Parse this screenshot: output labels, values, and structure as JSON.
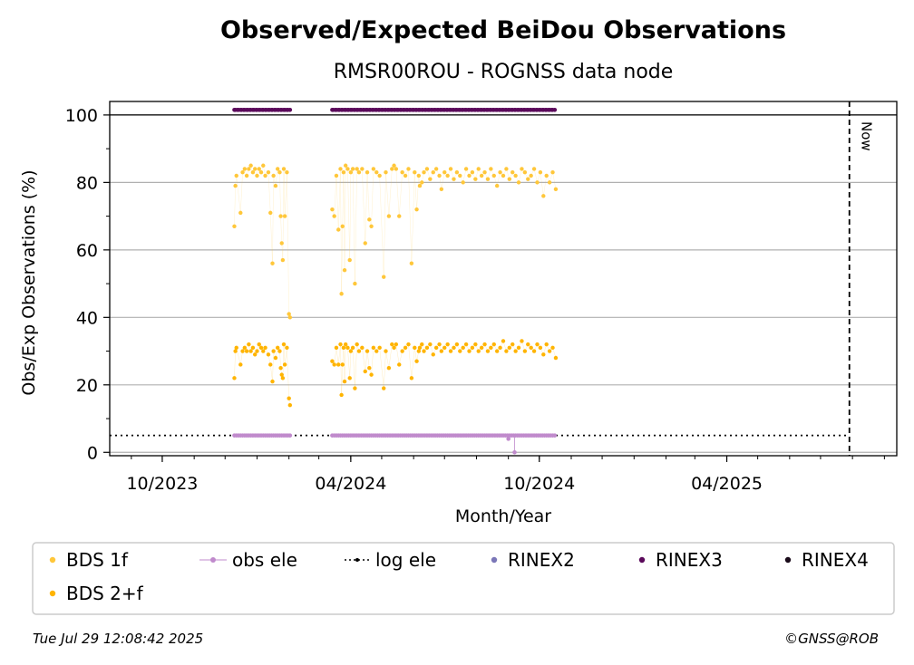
{
  "chart_data": {
    "type": "scatter",
    "title": "Observed/Expected BeiDou Observations",
    "subtitle": "RMSR00ROU - ROGNSS data node",
    "xlabel": "Month/Year",
    "ylabel": "Obs/Exp Observations (%)",
    "x_axis_type": "date",
    "xlim": [
      "2023-08-11",
      "2025-09-13"
    ],
    "ylim": [
      -1,
      104
    ],
    "xticks": [
      {
        "date": "2023-10-01",
        "label": "10/2023"
      },
      {
        "date": "2024-04-01",
        "label": "04/2024"
      },
      {
        "date": "2024-10-01",
        "label": "10/2024"
      },
      {
        "date": "2025-04-01",
        "label": "04/2025"
      }
    ],
    "yticks": [
      0,
      20,
      40,
      60,
      80,
      100
    ],
    "grid": "horizontal",
    "now_line": {
      "date": "2025-07-29",
      "label": "Now"
    },
    "log_ele_level": 5,
    "series": [
      {
        "name": "BDS 1f",
        "color": "#ffc73a",
        "points": [
          [
            "2023-12-10",
            67
          ],
          [
            "2023-12-11",
            79
          ],
          [
            "2023-12-12",
            82
          ],
          [
            "2023-12-16",
            71
          ],
          [
            "2023-12-18",
            83
          ],
          [
            "2023-12-20",
            84
          ],
          [
            "2023-12-22",
            82
          ],
          [
            "2023-12-24",
            84
          ],
          [
            "2023-12-26",
            85
          ],
          [
            "2023-12-28",
            83
          ],
          [
            "2023-12-30",
            84
          ],
          [
            "2024-01-01",
            82
          ],
          [
            "2024-01-03",
            84
          ],
          [
            "2024-01-05",
            83
          ],
          [
            "2024-01-07",
            85
          ],
          [
            "2024-01-09",
            82
          ],
          [
            "2024-01-12",
            83
          ],
          [
            "2024-01-14",
            71
          ],
          [
            "2024-01-16",
            56
          ],
          [
            "2024-01-17",
            82
          ],
          [
            "2024-01-19",
            79
          ],
          [
            "2024-01-21",
            84
          ],
          [
            "2024-01-23",
            83
          ],
          [
            "2024-01-24",
            70
          ],
          [
            "2024-01-25",
            62
          ],
          [
            "2024-01-26",
            57
          ],
          [
            "2024-01-27",
            84
          ],
          [
            "2024-01-28",
            70
          ],
          [
            "2024-01-30",
            83
          ],
          [
            "2024-02-01",
            41
          ],
          [
            "2024-02-02",
            40
          ],
          [
            "2024-03-14",
            72
          ],
          [
            "2024-03-16",
            70
          ],
          [
            "2024-03-18",
            82
          ],
          [
            "2024-03-20",
            66
          ],
          [
            "2024-03-22",
            84
          ],
          [
            "2024-03-23",
            47
          ],
          [
            "2024-03-24",
            67
          ],
          [
            "2024-03-25",
            83
          ],
          [
            "2024-03-26",
            54
          ],
          [
            "2024-03-27",
            85
          ],
          [
            "2024-03-29",
            84
          ],
          [
            "2024-03-31",
            57
          ],
          [
            "2024-04-01",
            83
          ],
          [
            "2024-04-03",
            84
          ],
          [
            "2024-04-05",
            50
          ],
          [
            "2024-04-07",
            84
          ],
          [
            "2024-04-09",
            83
          ],
          [
            "2024-04-12",
            84
          ],
          [
            "2024-04-15",
            62
          ],
          [
            "2024-04-17",
            83
          ],
          [
            "2024-04-19",
            69
          ],
          [
            "2024-04-21",
            67
          ],
          [
            "2024-04-23",
            84
          ],
          [
            "2024-04-26",
            83
          ],
          [
            "2024-04-29",
            82
          ],
          [
            "2024-05-03",
            52
          ],
          [
            "2024-05-05",
            83
          ],
          [
            "2024-05-08",
            70
          ],
          [
            "2024-05-11",
            84
          ],
          [
            "2024-05-13",
            85
          ],
          [
            "2024-05-15",
            84
          ],
          [
            "2024-05-18",
            70
          ],
          [
            "2024-05-21",
            83
          ],
          [
            "2024-05-24",
            82
          ],
          [
            "2024-05-27",
            84
          ],
          [
            "2024-05-30",
            56
          ],
          [
            "2024-06-02",
            83
          ],
          [
            "2024-06-04",
            72
          ],
          [
            "2024-06-06",
            82
          ],
          [
            "2024-06-07",
            79
          ],
          [
            "2024-06-09",
            80
          ],
          [
            "2024-06-11",
            83
          ],
          [
            "2024-06-14",
            84
          ],
          [
            "2024-06-17",
            81
          ],
          [
            "2024-06-20",
            83
          ],
          [
            "2024-06-23",
            84
          ],
          [
            "2024-06-26",
            82
          ],
          [
            "2024-06-28",
            78
          ],
          [
            "2024-07-01",
            83
          ],
          [
            "2024-07-04",
            82
          ],
          [
            "2024-07-07",
            84
          ],
          [
            "2024-07-10",
            81
          ],
          [
            "2024-07-13",
            83
          ],
          [
            "2024-07-16",
            82
          ],
          [
            "2024-07-19",
            80
          ],
          [
            "2024-07-22",
            84
          ],
          [
            "2024-07-25",
            82
          ],
          [
            "2024-07-28",
            83
          ],
          [
            "2024-07-31",
            81
          ],
          [
            "2024-08-03",
            84
          ],
          [
            "2024-08-06",
            82
          ],
          [
            "2024-08-09",
            83
          ],
          [
            "2024-08-12",
            81
          ],
          [
            "2024-08-15",
            84
          ],
          [
            "2024-08-18",
            82
          ],
          [
            "2024-08-21",
            79
          ],
          [
            "2024-08-24",
            83
          ],
          [
            "2024-08-27",
            82
          ],
          [
            "2024-08-30",
            84
          ],
          [
            "2024-09-02",
            81
          ],
          [
            "2024-09-05",
            83
          ],
          [
            "2024-09-08",
            82
          ],
          [
            "2024-09-11",
            80
          ],
          [
            "2024-09-14",
            84
          ],
          [
            "2024-09-17",
            83
          ],
          [
            "2024-09-20",
            81
          ],
          [
            "2024-09-23",
            82
          ],
          [
            "2024-09-26",
            84
          ],
          [
            "2024-09-29",
            80
          ],
          [
            "2024-10-02",
            83
          ],
          [
            "2024-10-05",
            76
          ],
          [
            "2024-10-08",
            82
          ],
          [
            "2024-10-11",
            80
          ],
          [
            "2024-10-14",
            83
          ],
          [
            "2024-10-17",
            78
          ]
        ]
      },
      {
        "name": "BDS 2+f",
        "color": "#ffb400",
        "points": [
          [
            "2023-12-10",
            22
          ],
          [
            "2023-12-11",
            30
          ],
          [
            "2023-12-12",
            31
          ],
          [
            "2023-12-16",
            26
          ],
          [
            "2023-12-18",
            30
          ],
          [
            "2023-12-20",
            31
          ],
          [
            "2023-12-22",
            30
          ],
          [
            "2023-12-24",
            32
          ],
          [
            "2023-12-26",
            30
          ],
          [
            "2023-12-28",
            31
          ],
          [
            "2023-12-30",
            29
          ],
          [
            "2024-01-01",
            30
          ],
          [
            "2024-01-03",
            32
          ],
          [
            "2024-01-05",
            31
          ],
          [
            "2024-01-07",
            30
          ],
          [
            "2024-01-09",
            31
          ],
          [
            "2024-01-12",
            29
          ],
          [
            "2024-01-14",
            26
          ],
          [
            "2024-01-16",
            21
          ],
          [
            "2024-01-17",
            30
          ],
          [
            "2024-01-19",
            28
          ],
          [
            "2024-01-21",
            31
          ],
          [
            "2024-01-23",
            30
          ],
          [
            "2024-01-24",
            25
          ],
          [
            "2024-01-25",
            23
          ],
          [
            "2024-01-26",
            22
          ],
          [
            "2024-01-27",
            32
          ],
          [
            "2024-01-28",
            26
          ],
          [
            "2024-01-30",
            31
          ],
          [
            "2024-02-01",
            16
          ],
          [
            "2024-02-02",
            14
          ],
          [
            "2024-03-14",
            27
          ],
          [
            "2024-03-16",
            26
          ],
          [
            "2024-03-18",
            31
          ],
          [
            "2024-03-20",
            26
          ],
          [
            "2024-03-22",
            32
          ],
          [
            "2024-03-23",
            17
          ],
          [
            "2024-03-24",
            26
          ],
          [
            "2024-03-25",
            31
          ],
          [
            "2024-03-26",
            21
          ],
          [
            "2024-03-27",
            32
          ],
          [
            "2024-03-29",
            31
          ],
          [
            "2024-03-31",
            22
          ],
          [
            "2024-04-01",
            30
          ],
          [
            "2024-04-03",
            31
          ],
          [
            "2024-04-05",
            19
          ],
          [
            "2024-04-07",
            32
          ],
          [
            "2024-04-09",
            30
          ],
          [
            "2024-04-12",
            31
          ],
          [
            "2024-04-15",
            24
          ],
          [
            "2024-04-17",
            30
          ],
          [
            "2024-04-19",
            25
          ],
          [
            "2024-04-21",
            23
          ],
          [
            "2024-04-23",
            31
          ],
          [
            "2024-04-26",
            30
          ],
          [
            "2024-04-29",
            31
          ],
          [
            "2024-05-03",
            19
          ],
          [
            "2024-05-05",
            30
          ],
          [
            "2024-05-08",
            25
          ],
          [
            "2024-05-11",
            32
          ],
          [
            "2024-05-13",
            31
          ],
          [
            "2024-05-15",
            32
          ],
          [
            "2024-05-18",
            26
          ],
          [
            "2024-05-21",
            30
          ],
          [
            "2024-05-24",
            31
          ],
          [
            "2024-05-27",
            32
          ],
          [
            "2024-05-30",
            22
          ],
          [
            "2024-06-02",
            31
          ],
          [
            "2024-06-04",
            27
          ],
          [
            "2024-06-06",
            30
          ],
          [
            "2024-06-07",
            31
          ],
          [
            "2024-06-09",
            32
          ],
          [
            "2024-06-11",
            30
          ],
          [
            "2024-06-14",
            31
          ],
          [
            "2024-06-17",
            32
          ],
          [
            "2024-06-20",
            29
          ],
          [
            "2024-06-23",
            31
          ],
          [
            "2024-06-26",
            32
          ],
          [
            "2024-06-28",
            30
          ],
          [
            "2024-07-01",
            31
          ],
          [
            "2024-07-04",
            32
          ],
          [
            "2024-07-07",
            30
          ],
          [
            "2024-07-10",
            31
          ],
          [
            "2024-07-13",
            32
          ],
          [
            "2024-07-16",
            30
          ],
          [
            "2024-07-19",
            31
          ],
          [
            "2024-07-22",
            32
          ],
          [
            "2024-07-25",
            30
          ],
          [
            "2024-07-28",
            31
          ],
          [
            "2024-07-31",
            32
          ],
          [
            "2024-08-03",
            30
          ],
          [
            "2024-08-06",
            31
          ],
          [
            "2024-08-09",
            32
          ],
          [
            "2024-08-12",
            30
          ],
          [
            "2024-08-15",
            31
          ],
          [
            "2024-08-18",
            32
          ],
          [
            "2024-08-21",
            30
          ],
          [
            "2024-08-24",
            31
          ],
          [
            "2024-08-27",
            33
          ],
          [
            "2024-08-30",
            30
          ],
          [
            "2024-09-02",
            31
          ],
          [
            "2024-09-05",
            32
          ],
          [
            "2024-09-08",
            30
          ],
          [
            "2024-09-11",
            31
          ],
          [
            "2024-09-14",
            33
          ],
          [
            "2024-09-17",
            30
          ],
          [
            "2024-09-20",
            32
          ],
          [
            "2024-09-23",
            31
          ],
          [
            "2024-09-26",
            30
          ],
          [
            "2024-09-29",
            32
          ],
          [
            "2024-10-02",
            31
          ],
          [
            "2024-10-05",
            29
          ],
          [
            "2024-10-08",
            32
          ],
          [
            "2024-10-11",
            30
          ],
          [
            "2024-10-14",
            31
          ],
          [
            "2024-10-17",
            28
          ]
        ]
      },
      {
        "name": "obs ele",
        "color": "#c08acc",
        "y": 5,
        "ranges": [
          [
            "2023-12-10",
            "2024-02-02"
          ],
          [
            "2024-03-14",
            "2024-10-17"
          ]
        ],
        "exceptions": [
          [
            "2024-09-01",
            4
          ],
          [
            "2024-09-07",
            0
          ]
        ]
      },
      {
        "name": "log ele",
        "color": "#000000"
      },
      {
        "name": "RINEX2",
        "color": "#7b77b8"
      },
      {
        "name": "RINEX3",
        "color": "#5b0a5b",
        "y": 101.5,
        "ranges": [
          [
            "2023-12-10",
            "2024-02-02"
          ],
          [
            "2024-03-14",
            "2024-10-17"
          ]
        ]
      },
      {
        "name": "RINEX4",
        "color": "#1a0a1a"
      }
    ]
  },
  "legend": {
    "items": [
      {
        "label": "BDS 1f",
        "marker": "dot",
        "color": "#ffc73a"
      },
      {
        "label": "obs ele",
        "marker": "line-dot",
        "color": "#c08acc"
      },
      {
        "label": "log ele",
        "marker": "dotted-line",
        "color": "#000000"
      },
      {
        "label": "RINEX2",
        "marker": "dot",
        "color": "#7b77b8"
      },
      {
        "label": "RINEX3",
        "marker": "dot",
        "color": "#5b0a5b"
      },
      {
        "label": "RINEX4",
        "marker": "dot",
        "color": "#1a0a1a"
      },
      {
        "label": "BDS 2+f",
        "marker": "dot",
        "color": "#ffb400"
      }
    ]
  },
  "footer": {
    "timestamp": "Tue Jul 29 12:08:42 2025",
    "credit": "©GNSS@ROB"
  }
}
